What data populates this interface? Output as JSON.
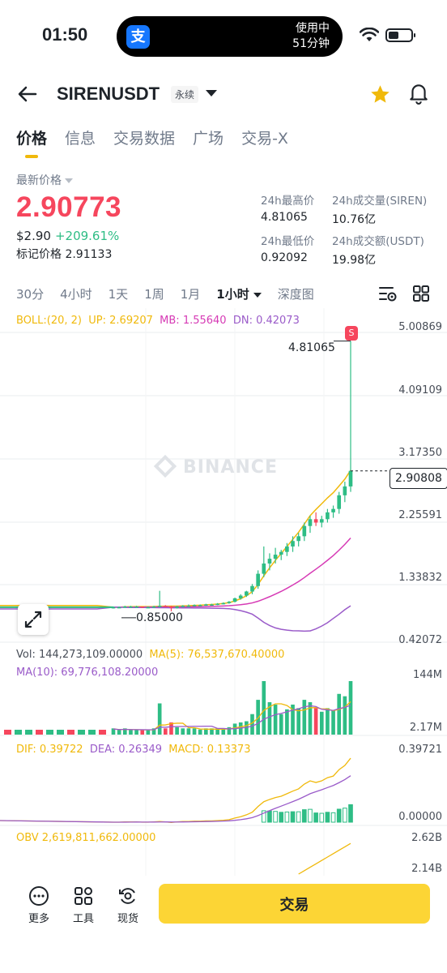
{
  "status_bar": {
    "time": "01:50",
    "island_app_icon": "支",
    "island_line1": "使用中",
    "island_line2": "51分钟",
    "icons": [
      "wifi-icon",
      "battery-icon"
    ]
  },
  "header": {
    "symbol": "SIRENUSDT",
    "contract_type": "永续",
    "icons": [
      "back-arrow-icon",
      "chevron-down-icon",
      "star-icon",
      "bell-icon"
    ],
    "favorite_color": "#f0b90b"
  },
  "tabs": [
    {
      "label": "价格",
      "active": true
    },
    {
      "label": "信息",
      "active": false
    },
    {
      "label": "交易数据",
      "active": false
    },
    {
      "label": "广场",
      "active": false
    },
    {
      "label": "交易-X",
      "active": false
    }
  ],
  "price": {
    "last_label": "最新价格",
    "last_price": "2.90773",
    "usd_price": "$2.90",
    "change_pct": "+209.61%",
    "mark_label": "标记价格",
    "mark_price": "2.91133",
    "colors": {
      "down": "#f6465d",
      "up": "#2ebd85"
    }
  },
  "stats": {
    "high_label": "24h最高价",
    "high": "4.81065",
    "vol_label": "24h成交量(SIREN)",
    "vol": "10.76亿",
    "low_label": "24h最低价",
    "low": "0.92092",
    "amt_label": "24h成交额(USDT)",
    "amt": "19.98亿"
  },
  "intervals": {
    "items": [
      "30分",
      "4小时",
      "1天",
      "1周",
      "1月"
    ],
    "selected": "1小时",
    "depth": "深度图"
  },
  "chart_text": {
    "boll": "BOLL:(20, 2)",
    "up": "UP: 2.69207",
    "mb": "MB: 1.55640",
    "dn": "DN: 0.42073",
    "watermark": "BINANCE",
    "high_marker": "4.81065",
    "low_marker": "0.85000",
    "current_price_tag": "2.90808",
    "s_badge": "S",
    "vol": "Vol: 144,273,109.00000",
    "vol_ma5": "MA(5): 76,537,670.40000",
    "vol_ma10": "MA(10): 69,776,108.20000",
    "dif": "DIF: 0.39722",
    "dea": "DEA: 0.26349",
    "macd": "MACD: 0.13373",
    "obv": "OBV 2,619,811,662.00000"
  },
  "chart_data": {
    "type": "candlestick",
    "price_axis_ticks": [
      "5.00869",
      "4.09109",
      "3.17350",
      "2.25591",
      "1.33832",
      "0.42072"
    ],
    "ylim": [
      0.42072,
      5.00869
    ],
    "candles_hourly": [
      [
        0.9,
        0.92,
        0.89,
        0.91
      ],
      [
        0.91,
        0.92,
        0.9,
        0.91
      ],
      [
        0.91,
        0.93,
        0.9,
        0.92
      ],
      [
        0.92,
        0.93,
        0.91,
        0.92
      ],
      [
        0.92,
        0.93,
        0.91,
        0.92
      ],
      [
        0.92,
        0.92,
        0.9,
        0.91
      ],
      [
        0.91,
        0.92,
        0.9,
        0.91
      ],
      [
        0.91,
        0.93,
        0.9,
        0.92
      ],
      [
        0.92,
        1.15,
        0.91,
        0.93
      ],
      [
        0.93,
        0.94,
        0.91,
        0.92
      ],
      [
        0.92,
        0.93,
        0.85,
        0.9
      ],
      [
        0.9,
        0.93,
        0.89,
        0.92
      ],
      [
        0.92,
        0.94,
        0.91,
        0.93
      ],
      [
        0.93,
        0.95,
        0.92,
        0.93
      ],
      [
        0.93,
        0.95,
        0.92,
        0.94
      ],
      [
        0.94,
        0.95,
        0.93,
        0.94
      ],
      [
        0.94,
        0.96,
        0.93,
        0.95
      ],
      [
        0.95,
        0.96,
        0.93,
        0.95
      ],
      [
        0.95,
        0.97,
        0.94,
        0.96
      ],
      [
        0.96,
        0.98,
        0.95,
        0.97
      ],
      [
        0.97,
        1.0,
        0.96,
        0.99
      ],
      [
        0.99,
        1.05,
        0.98,
        1.04
      ],
      [
        1.04,
        1.1,
        1.02,
        1.08
      ],
      [
        1.08,
        1.15,
        1.06,
        1.14
      ],
      [
        1.14,
        1.25,
        1.1,
        1.22
      ],
      [
        1.22,
        1.45,
        1.18,
        1.4
      ],
      [
        1.4,
        1.8,
        1.35,
        1.55
      ],
      [
        1.55,
        1.7,
        1.45,
        1.62
      ],
      [
        1.62,
        1.78,
        1.55,
        1.68
      ],
      [
        1.68,
        1.75,
        1.6,
        1.72
      ],
      [
        1.72,
        1.85,
        1.66,
        1.8
      ],
      [
        1.8,
        1.95,
        1.72,
        1.88
      ],
      [
        1.88,
        2.0,
        1.8,
        1.95
      ],
      [
        1.95,
        2.15,
        1.88,
        2.1
      ],
      [
        2.1,
        2.25,
        2.0,
        2.2
      ],
      [
        2.2,
        2.3,
        2.1,
        2.15
      ],
      [
        2.15,
        2.25,
        2.08,
        2.2
      ],
      [
        2.2,
        2.35,
        2.15,
        2.3
      ],
      [
        2.3,
        2.4,
        2.22,
        2.35
      ],
      [
        2.35,
        2.6,
        2.28,
        2.55
      ],
      [
        2.55,
        2.75,
        2.45,
        2.68
      ],
      [
        2.68,
        4.81065,
        2.6,
        2.90808
      ]
    ],
    "volume_axis": [
      "144M",
      "2.17M"
    ],
    "macd_axis": [
      "0.39721",
      "0.00000"
    ],
    "obv_axis": [
      "2.62B",
      "2.14B"
    ]
  },
  "bottom_bar": {
    "more": "更多",
    "tools": "工具",
    "spot": "现货",
    "trade": "交易"
  }
}
